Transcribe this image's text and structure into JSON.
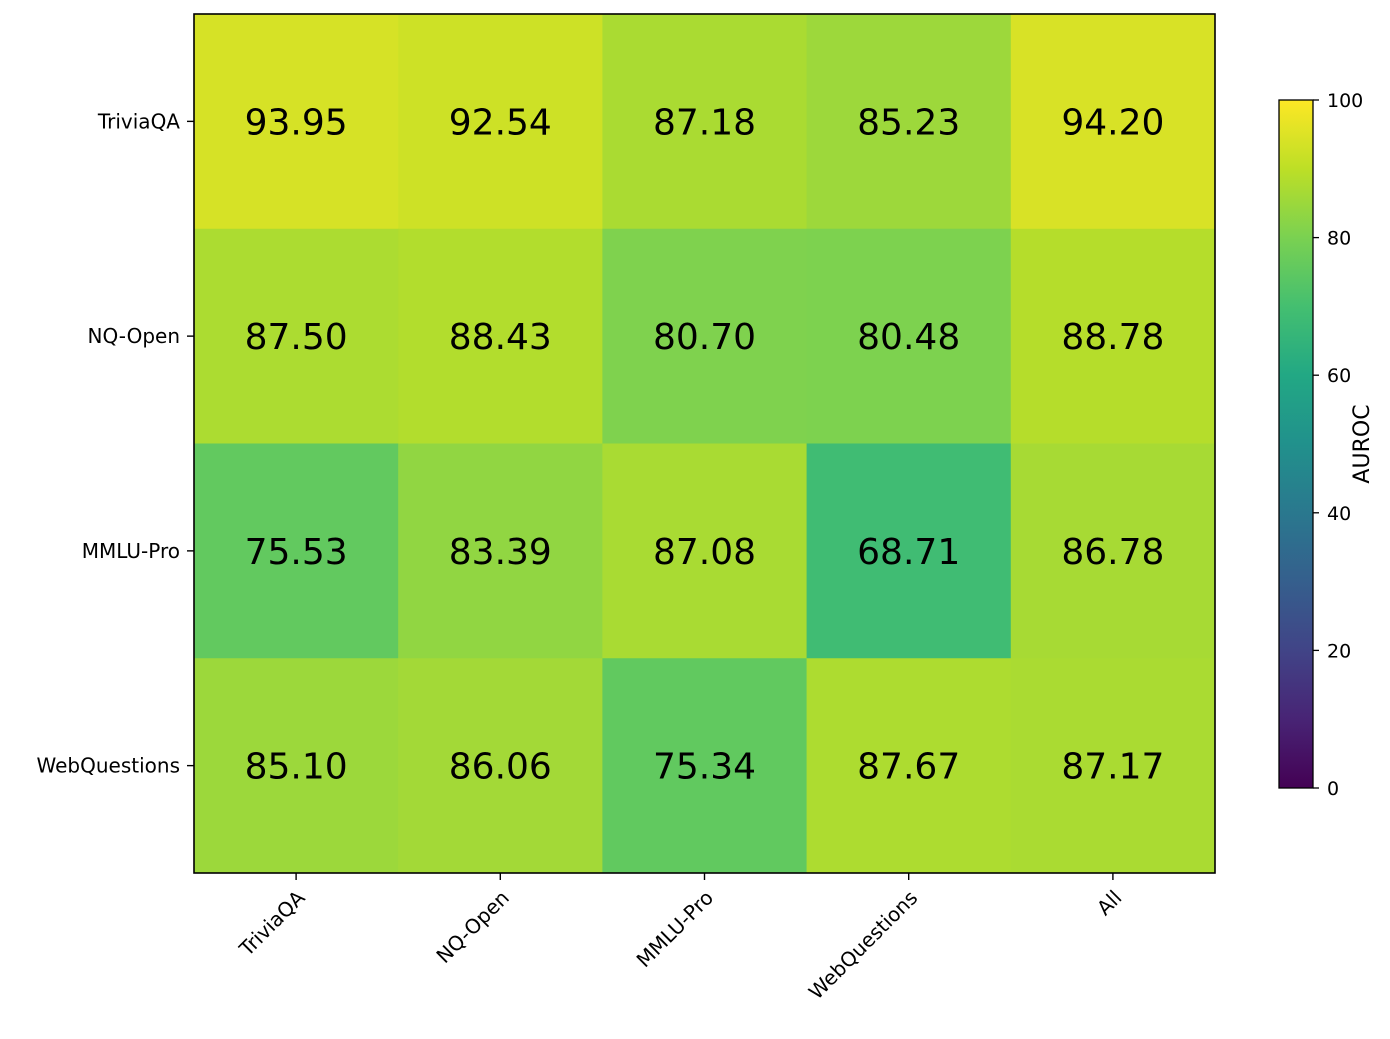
{
  "chart_data": {
    "type": "heatmap",
    "row_labels": [
      "TriviaQA",
      "NQ-Open",
      "MMLU-Pro",
      "WebQuestions"
    ],
    "col_labels": [
      "TriviaQA",
      "NQ-Open",
      "MMLU-Pro",
      "WebQuestions",
      "All"
    ],
    "values": [
      [
        93.95,
        92.54,
        87.18,
        85.23,
        94.2
      ],
      [
        87.5,
        88.43,
        80.7,
        80.48,
        88.78
      ],
      [
        75.53,
        83.39,
        87.08,
        68.71,
        86.78
      ],
      [
        85.1,
        86.06,
        75.34,
        87.67,
        87.17
      ]
    ],
    "value_labels": [
      [
        "93.95",
        "92.54",
        "87.18",
        "85.23",
        "94.20"
      ],
      [
        "87.50",
        "88.43",
        "80.70",
        "80.48",
        "88.78"
      ],
      [
        "75.53",
        "83.39",
        "87.08",
        "68.71",
        "86.78"
      ],
      [
        "85.10",
        "86.06",
        "75.34",
        "87.67",
        "87.17"
      ]
    ],
    "colorbar": {
      "label": "AUROC",
      "range": [
        0,
        100
      ],
      "ticks": [
        "0",
        "20",
        "40",
        "60",
        "80",
        "100"
      ],
      "colormap": "viridis"
    },
    "title": "",
    "xlabel": "",
    "ylabel": "",
    "grid": false
  }
}
